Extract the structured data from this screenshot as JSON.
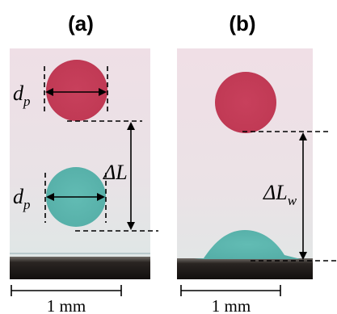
{
  "panels": [
    {
      "label": "(a)",
      "diameter_labels": {
        "symbol": "d",
        "subscript": "p"
      },
      "distance_label": "ΔL",
      "scale_label": "1 mm"
    },
    {
      "label": "(b)",
      "distance_label": {
        "symbol": "ΔL",
        "subscript": "w"
      },
      "scale_label": "1 mm"
    }
  ],
  "colors": {
    "red_drop": "#c43d57",
    "cyan_drop": "#5fb7b0",
    "panel_bg_top": "#eedfe6",
    "panel_bg_bottom": "#dfe7e6",
    "substrate": "#1a1614"
  }
}
